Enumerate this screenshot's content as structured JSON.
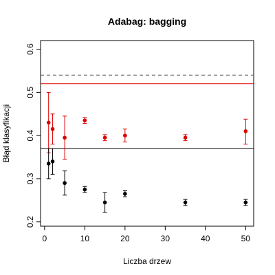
{
  "chart_data": {
    "type": "scatter",
    "title": "Adabag: bagging",
    "xlabel": "Liczba drzew",
    "ylabel": "Błąd klasyfikacji",
    "xlim": [
      -1,
      52
    ],
    "ylim": [
      0.19,
      0.62
    ],
    "xticks": [
      0,
      10,
      20,
      30,
      40,
      50
    ],
    "yticks": [
      0.2,
      0.3,
      0.4,
      0.5,
      0.6
    ],
    "grid": false,
    "series": [
      {
        "color": "#dd0000",
        "x": [
          1,
          2,
          5,
          10,
          15,
          20,
          35,
          50
        ],
        "y": [
          0.43,
          0.415,
          0.395,
          0.435,
          0.395,
          0.4,
          0.395,
          0.41
        ],
        "lower": [
          0.36,
          0.38,
          0.345,
          0.428,
          0.388,
          0.385,
          0.388,
          0.38
        ],
        "upper": [
          0.5,
          0.45,
          0.445,
          0.442,
          0.402,
          0.415,
          0.402,
          0.438
        ]
      },
      {
        "color": "#000000",
        "x": [
          1,
          2,
          5,
          10,
          15,
          20,
          35,
          50
        ],
        "y": [
          0.335,
          0.34,
          0.29,
          0.275,
          0.245,
          0.265,
          0.245,
          0.245
        ],
        "lower": [
          0.3,
          0.31,
          0.262,
          0.268,
          0.222,
          0.258,
          0.238,
          0.238
        ],
        "upper": [
          0.37,
          0.37,
          0.318,
          0.282,
          0.268,
          0.272,
          0.252,
          0.252
        ]
      }
    ],
    "reference_lines": [
      {
        "y": 0.54,
        "color": "#555555",
        "style": "dashed"
      },
      {
        "y": 0.52,
        "color": "#dd0000",
        "style": "solid"
      },
      {
        "y": 0.37,
        "color": "#000000",
        "style": "solid"
      }
    ]
  }
}
